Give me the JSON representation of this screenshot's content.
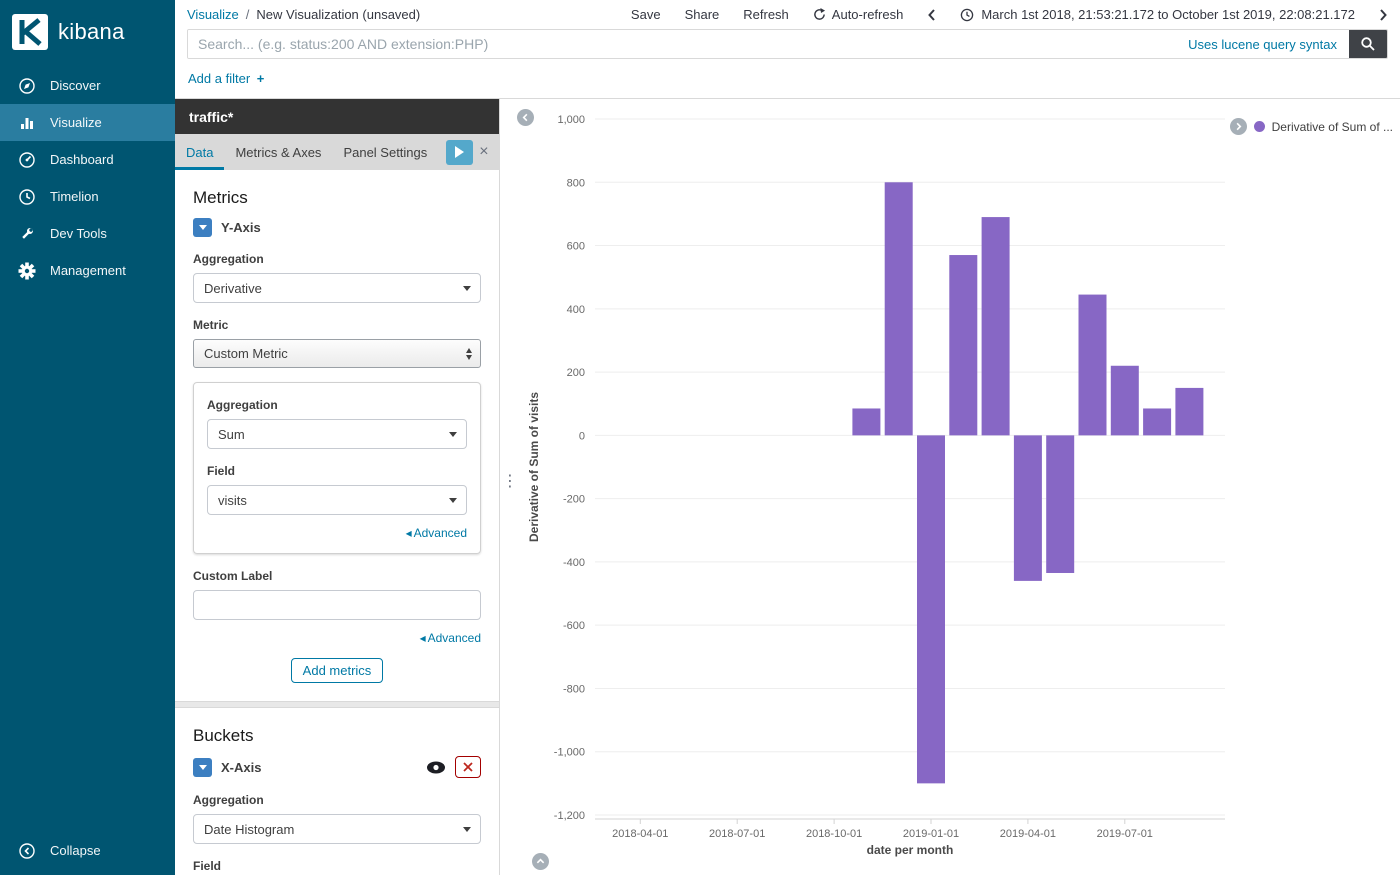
{
  "colors": {
    "accent": "#0079a5",
    "sidebar_bg": "#005571",
    "sidebar_active_bg": "#2a7da0",
    "bar_fill": "#8767c5",
    "danger": "#a30000"
  },
  "icons": {
    "close": "×",
    "resize_dots": "⋮",
    "advanced_arrow": "◂"
  },
  "sidebar": {
    "logo_label": "kibana",
    "items": [
      {
        "label": "Discover"
      },
      {
        "label": "Visualize"
      },
      {
        "label": "Dashboard"
      },
      {
        "label": "Timelion"
      },
      {
        "label": "Dev Tools"
      },
      {
        "label": "Management"
      }
    ],
    "collapse_label": "Collapse"
  },
  "topbar": {
    "breadcrumb": {
      "section": "Visualize",
      "separator": "/",
      "page": "New Visualization (unsaved)"
    },
    "save_label": "Save",
    "share_label": "Share",
    "refresh_label": "Refresh",
    "auto_refresh_label": "Auto-refresh",
    "time_range": "March 1st 2018, 21:53:21.172 to October 1st 2019, 22:08:21.172"
  },
  "search": {
    "placeholder": "Search... (e.g. status:200 AND extension:PHP)",
    "syntax_hint": "Uses lucene query syntax"
  },
  "filter_bar": {
    "add_filter_label": "Add a filter",
    "plus": "+"
  },
  "editor": {
    "title": "traffic*",
    "tabs": [
      {
        "label": "Data"
      },
      {
        "label": "Metrics & Axes"
      },
      {
        "label": "Panel Settings"
      }
    ],
    "metrics": {
      "heading": "Metrics",
      "axis_toggle_label": "Y-Axis",
      "aggregation_label": "Aggregation",
      "aggregation_value": "Derivative",
      "metric_label": "Metric",
      "metric_value": "Custom Metric",
      "custom_metric": {
        "aggregation_label": "Aggregation",
        "aggregation_value": "Sum",
        "field_label": "Field",
        "field_value": "visits",
        "advanced_link": "Advanced"
      },
      "custom_label_label": "Custom Label",
      "custom_label_value": "",
      "advanced_link": "Advanced",
      "add_metrics_button": "Add metrics"
    },
    "buckets": {
      "heading": "Buckets",
      "axis_toggle_label": "X-Axis",
      "aggregation_label": "Aggregation",
      "aggregation_value": "Date Histogram",
      "field_label": "Field",
      "field_value": "date"
    }
  },
  "chart_data": {
    "type": "bar",
    "title": "",
    "xlabel": "date per month",
    "ylabel": "Derivative of Sum of visits",
    "legend": [
      {
        "label": "Derivative of Sum of ...",
        "color": "#8767c5"
      }
    ],
    "legend_position": "top-right",
    "categories": [
      "2018-11-01",
      "2018-12-01",
      "2019-01-01",
      "2019-02-01",
      "2019-03-01",
      "2019-04-01",
      "2019-05-01",
      "2019-06-01",
      "2019-07-01",
      "2019-08-01",
      "2019-09-01"
    ],
    "values": [
      85,
      800,
      -1100,
      570,
      690,
      -460,
      -435,
      445,
      220,
      85,
      150
    ],
    "ylim": [
      -1200,
      1000
    ],
    "ytick_step": 200,
    "ytick_labels": [
      "1,000",
      "800",
      "600",
      "400",
      "200",
      "0",
      "-200",
      "-400",
      "-600",
      "-800",
      "-1,000",
      "-1,200"
    ],
    "xtick_labels": [
      "2018-04-01",
      "2018-07-01",
      "2018-10-01",
      "2019-01-01",
      "2019-04-01",
      "2019-07-01"
    ],
    "x_start": "2018-03-01",
    "x_end": "2019-10-01",
    "grid": true
  }
}
